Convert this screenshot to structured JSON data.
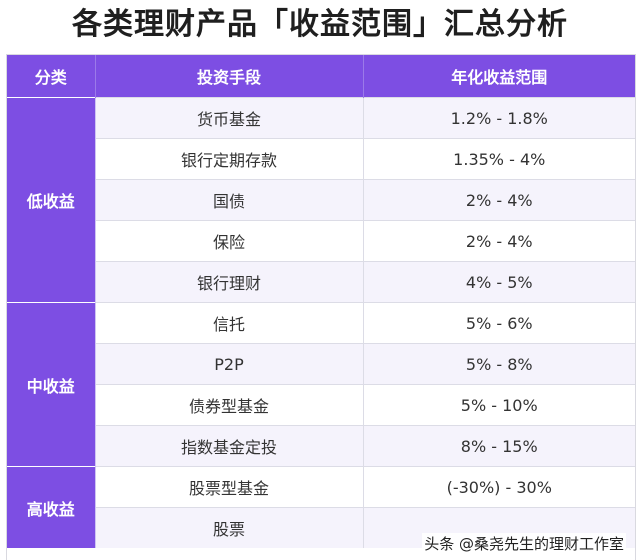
{
  "title": "各类理财产品「收益范围」汇总分析",
  "table": {
    "headers": [
      "分类",
      "投资手段",
      "年化收益范围"
    ],
    "groups": [
      {
        "category": "低收益",
        "rows": [
          {
            "investment": "货币基金",
            "range": "1.2% - 1.8%"
          },
          {
            "investment": "银行定期存款",
            "range": "1.35% - 4%"
          },
          {
            "investment": "国债",
            "range": "2% - 4%"
          },
          {
            "investment": "保险",
            "range": "2% - 4%"
          },
          {
            "investment": "银行理财",
            "range": "4% - 5%"
          }
        ]
      },
      {
        "category": "中收益",
        "rows": [
          {
            "investment": "信托",
            "range": "5% - 6%"
          },
          {
            "investment": "P2P",
            "range": "5% - 8%"
          },
          {
            "investment": "债券型基金",
            "range": "5% - 10%"
          },
          {
            "investment": "指数基金定投",
            "range": "8% - 15%"
          }
        ]
      },
      {
        "category": "高收益",
        "rows": [
          {
            "investment": "股票型基金",
            "range": "(-30%)  - 30%"
          },
          {
            "investment": "股票",
            "range": ""
          }
        ]
      }
    ]
  },
  "watermark": "头条 @桑尧先生的理财工作室"
}
